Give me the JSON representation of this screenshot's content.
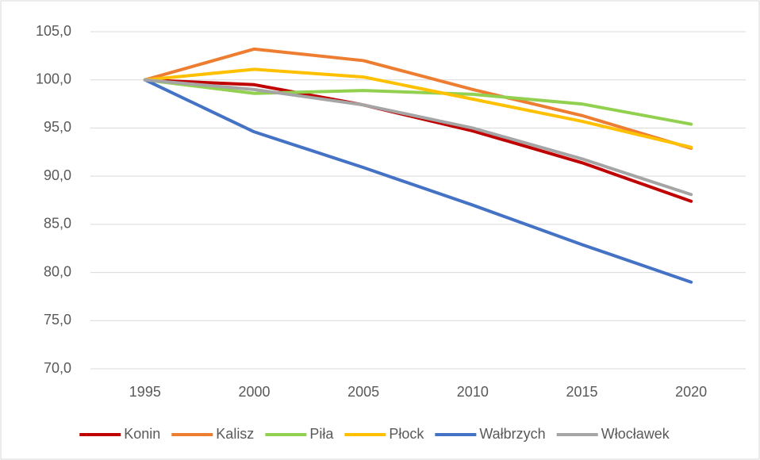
{
  "chart_data": {
    "type": "line",
    "categories": [
      "1995",
      "2000",
      "2005",
      "2010",
      "2015",
      "2020"
    ],
    "series": [
      {
        "name": "Konin",
        "color": "#c00000",
        "values": [
          100,
          99.5,
          97.4,
          94.7,
          91.4,
          87.4
        ]
      },
      {
        "name": "Kalisz",
        "color": "#ed7d31",
        "values": [
          100,
          103.2,
          102.0,
          99.0,
          96.3,
          92.9
        ]
      },
      {
        "name": "Piła",
        "color": "#92d050",
        "values": [
          100,
          98.6,
          98.9,
          98.5,
          97.5,
          95.4
        ]
      },
      {
        "name": "Płock",
        "color": "#ffc000",
        "values": [
          100,
          101.1,
          100.3,
          98.0,
          95.7,
          93.0
        ]
      },
      {
        "name": "Wałbrzych",
        "color": "#4472c4",
        "values": [
          100,
          94.6,
          90.9,
          87.0,
          82.9,
          79.0
        ]
      },
      {
        "name": "Włocławek",
        "color": "#a5a5a5",
        "values": [
          100,
          99.0,
          97.4,
          95.0,
          91.8,
          88.1
        ]
      }
    ],
    "ylim": [
      70,
      105
    ],
    "yticks": [
      {
        "value": 70,
        "label": "70,0"
      },
      {
        "value": 75,
        "label": "75,0"
      },
      {
        "value": 80,
        "label": "80,0"
      },
      {
        "value": 85,
        "label": "85,0"
      },
      {
        "value": 90,
        "label": "90,0"
      },
      {
        "value": 95,
        "label": "95,0"
      },
      {
        "value": 100,
        "label": "100,0"
      },
      {
        "value": 105,
        "label": "105,0"
      }
    ],
    "grid": true,
    "legend": "bottom"
  }
}
